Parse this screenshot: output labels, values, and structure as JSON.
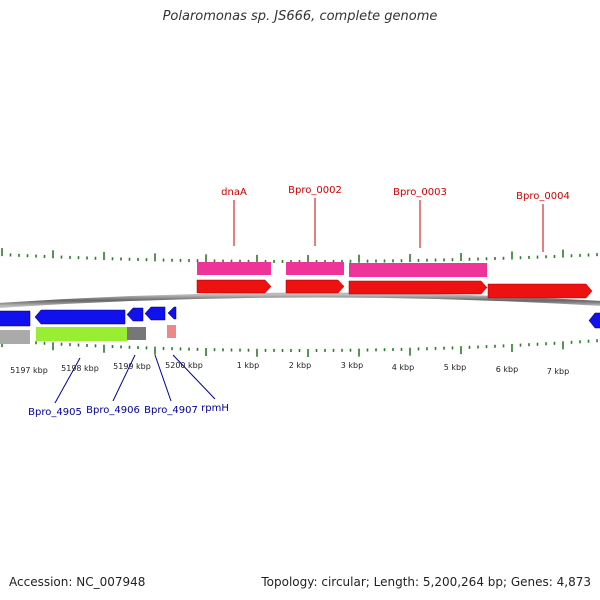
{
  "title": "Polaromonas sp. JS666, complete genome",
  "footer": {
    "accession": "Accession: NC_007948",
    "summary": "Topology: circular; Length: 5,200,264 bp; Genes: 4,873"
  },
  "colors": {
    "backbone": "#777777",
    "tick": "#2d7a2d",
    "forward_gene": "#ee1111",
    "forward_cds": "#ee3399",
    "reverse_gene": "#1111ee",
    "reverse_misc": "#aaaaaa",
    "reverse_lime": "#99ee33",
    "label_forward": "#cc0000",
    "label_reverse": "#000099"
  },
  "scale_labels": [
    "5197 kbp",
    "5198 kbp",
    "5199 kbp",
    "5200 kbp",
    "1 kbp",
    "2 kbp",
    "3 kbp",
    "4 kbp",
    "5 kbp",
    "6 kbp",
    "7 kbp"
  ],
  "gene_labels_forward": [
    "dnaA",
    "Bpro_0002",
    "Bpro_0003",
    "Bpro_0004"
  ],
  "gene_labels_reverse": [
    "Bpro_4905",
    "Bpro_4906",
    "Bpro_4907",
    "rpmH"
  ]
}
